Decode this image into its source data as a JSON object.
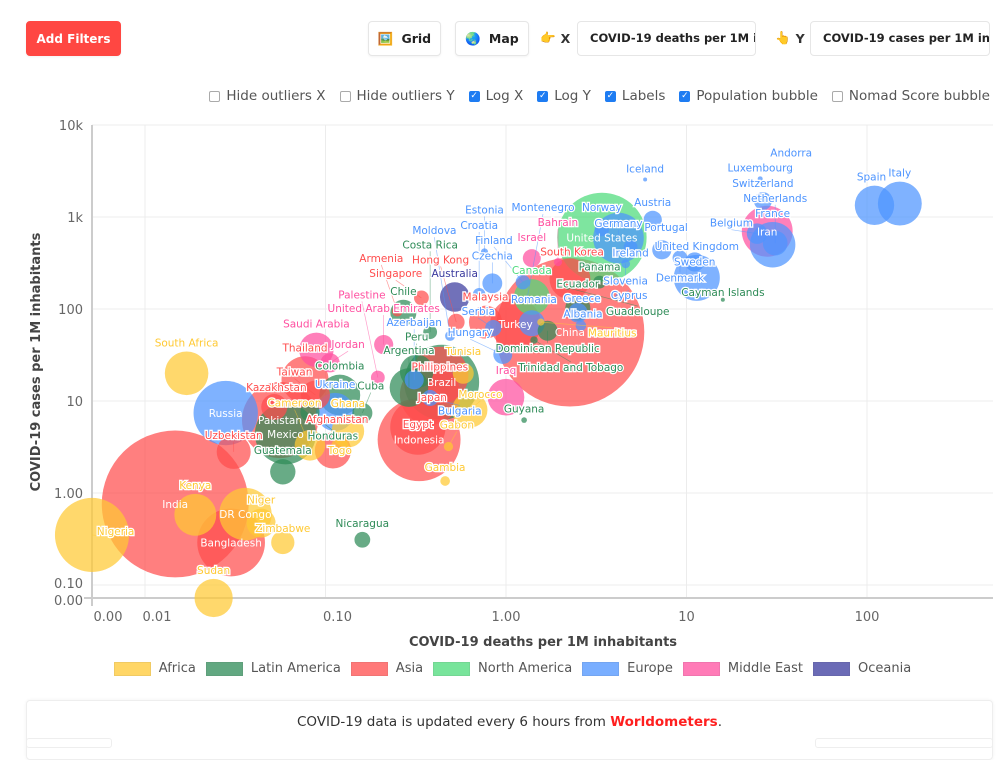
{
  "toolbar": {
    "add_filters": "Add Filters",
    "grid": {
      "label": "Grid",
      "icon": "framed-picture-icon"
    },
    "map": {
      "label": "Map",
      "icon": "globe-icon"
    },
    "x_axis": {
      "icon": "pointing-right-icon",
      "tag": "X",
      "value": "COVID-19 deaths per 1M inhabitants"
    },
    "y_axis": {
      "icon": "pointing-up-icon",
      "tag": "Y",
      "value": "COVID-19 cases per 1M inhabitants"
    }
  },
  "options": [
    {
      "label": "Hide outliers X",
      "checked": false
    },
    {
      "label": "Hide outliers Y",
      "checked": false
    },
    {
      "label": "Log X",
      "checked": true
    },
    {
      "label": "Log Y",
      "checked": true
    },
    {
      "label": "Labels",
      "checked": true
    },
    {
      "label": "Population bubble",
      "checked": true
    },
    {
      "label": "Nomad Score bubble",
      "checked": false
    }
  ],
  "chart_data": {
    "type": "bubble",
    "xlabel": "COVID-19 deaths per 1M inhabitants",
    "ylabel": "COVID-19 cases per 1M inhabitants",
    "x_scale": "log",
    "y_scale": "log",
    "x_ticks": [
      "0.00",
      "0.01",
      "0.10",
      "1.00",
      "10",
      "100"
    ],
    "y_ticks": [
      "10k",
      "1k",
      "100",
      "10",
      "1.00",
      "0.10",
      "0.00"
    ],
    "grid": true,
    "legend_position": "bottom",
    "bubble_size": "population (millions)",
    "regions": [
      {
        "name": "Africa",
        "color": "#FFC933"
      },
      {
        "name": "Latin America",
        "color": "#2E8B57"
      },
      {
        "name": "Asia",
        "color": "#FF4D4D"
      },
      {
        "name": "North America",
        "color": "#4CDB7A"
      },
      {
        "name": "Europe",
        "color": "#4D94FF"
      },
      {
        "name": "Middle East",
        "color": "#FF4FA0"
      },
      {
        "name": "Oceania",
        "color": "#3A3A9E"
      }
    ],
    "points": [
      {
        "name": "Nigeria",
        "x": 0,
        "y": 0.35,
        "pop": 206,
        "region": "Africa"
      },
      {
        "name": "South Africa",
        "x": 0.017,
        "y": 20,
        "pop": 59,
        "region": "Africa"
      },
      {
        "name": "Kenya",
        "x": 0.019,
        "y": 0.58,
        "pop": 54,
        "region": "Africa"
      },
      {
        "name": "DR Congo",
        "x": 0.036,
        "y": 0.59,
        "pop": 90,
        "region": "Africa"
      },
      {
        "name": "Niger",
        "x": 0.044,
        "y": 0.47,
        "pop": 24,
        "region": "Africa"
      },
      {
        "name": "Zimbabwe",
        "x": 0.058,
        "y": 0.29,
        "pop": 15,
        "region": "Africa"
      },
      {
        "name": "Sudan",
        "x": 0.024,
        "y": 0,
        "pop": 44,
        "region": "Africa"
      },
      {
        "name": "Ghana",
        "x": 0.133,
        "y": 4.7,
        "pop": 31,
        "region": "Africa"
      },
      {
        "name": "Cameroon",
        "x": 0.082,
        "y": 3.3,
        "pop": 27,
        "region": "Africa"
      },
      {
        "name": "Togo",
        "x": 0.12,
        "y": 3.2,
        "pop": 8,
        "region": "Africa"
      },
      {
        "name": "Gabon",
        "x": 0.48,
        "y": 3.2,
        "pop": 2.2,
        "region": "Africa"
      },
      {
        "name": "Gambia",
        "x": 0.46,
        "y": 1.35,
        "pop": 2.4,
        "region": "Africa"
      },
      {
        "name": "Tunisia",
        "x": 0.58,
        "y": 20,
        "pop": 12,
        "region": "Africa"
      },
      {
        "name": "Morocco",
        "x": 0.63,
        "y": 8,
        "pop": 37,
        "region": "Africa"
      },
      {
        "name": "Mauritius",
        "x": 1.56,
        "y": 72,
        "pop": 1.3,
        "region": "Africa"
      },
      {
        "name": "India",
        "x": 0.0147,
        "y": 0.76,
        "pop": 1380,
        "region": "Asia"
      },
      {
        "name": "China",
        "x": 2.26,
        "y": 56,
        "pop": 1440,
        "region": "Asia"
      },
      {
        "name": "Indonesia",
        "x": 0.33,
        "y": 3.8,
        "pop": 273,
        "region": "Asia"
      },
      {
        "name": "Egypt",
        "x": 0.325,
        "y": 5.2,
        "pop": 102,
        "region": "Asia"
      },
      {
        "name": "Pakistan",
        "x": 0.056,
        "y": 6.2,
        "pop": 220,
        "region": "Asia"
      },
      {
        "name": "Bangladesh",
        "x": 0.03,
        "y": 0.29,
        "pop": 165,
        "region": "Asia"
      },
      {
        "name": "Japan",
        "x": 0.38,
        "y": 11.7,
        "pop": 126,
        "region": "Asia"
      },
      {
        "name": "Philippines",
        "x": 0.43,
        "y": 19,
        "pop": 110,
        "region": "Asia"
      },
      {
        "name": "Turkey",
        "x": 1.13,
        "y": 69,
        "pop": 84,
        "region": "Asia"
      },
      {
        "name": "South Korea",
        "x": 2.26,
        "y": 213,
        "pop": 51,
        "region": "Asia"
      },
      {
        "name": "Malaysia",
        "x": 0.77,
        "y": 72,
        "pop": 32,
        "region": "Asia"
      },
      {
        "name": "Singapore",
        "x": 0.34,
        "y": 132,
        "pop": 5.8,
        "region": "Asia"
      },
      {
        "name": "Hong Kong",
        "x": 0.53,
        "y": 72,
        "pop": 7.5,
        "region": "Asia"
      },
      {
        "name": "Thailand",
        "x": 0.077,
        "y": 17,
        "pop": 70,
        "region": "Asia"
      },
      {
        "name": "Taiwan",
        "x": 0.088,
        "y": 11.6,
        "pop": 24,
        "region": "Asia"
      },
      {
        "name": "Kazakhstan",
        "x": 0.052,
        "y": 8.6,
        "pop": 19,
        "region": "Asia"
      },
      {
        "name": "Uzbekistan",
        "x": 0.031,
        "y": 2.8,
        "pop": 34,
        "region": "Asia"
      },
      {
        "name": "Afghanistan",
        "x": 0.11,
        "y": 2.9,
        "pop": 39,
        "region": "Asia"
      },
      {
        "name": "Armenia",
        "x": 0.25,
        "y": 95,
        "pop": 3,
        "region": "Asia"
      },
      {
        "name": "Brazil",
        "x": 0.44,
        "y": 16,
        "pop": 212,
        "region": "Latin America"
      },
      {
        "name": "Mexico",
        "x": 0.06,
        "y": 4.4,
        "pop": 129,
        "region": "Latin America"
      },
      {
        "name": "Peru",
        "x": 0.32,
        "y": 21,
        "pop": 33,
        "region": "Latin America"
      },
      {
        "name": "Colombia",
        "x": 0.12,
        "y": 11.6,
        "pop": 51,
        "region": "Latin America"
      },
      {
        "name": "Argentina",
        "x": 0.29,
        "y": 14,
        "pop": 45,
        "region": "Latin America"
      },
      {
        "name": "Cuba",
        "x": 0.16,
        "y": 7.4,
        "pop": 11,
        "region": "Latin America"
      },
      {
        "name": "Honduras",
        "x": 0.082,
        "y": 7.6,
        "pop": 10,
        "region": "Latin America"
      },
      {
        "name": "Guatemala",
        "x": 0.058,
        "y": 1.7,
        "pop": 18,
        "region": "Latin America"
      },
      {
        "name": "Nicaragua",
        "x": 0.16,
        "y": 0.31,
        "pop": 6.6,
        "region": "Latin America"
      },
      {
        "name": "Guyana",
        "x": 1.26,
        "y": 6.2,
        "pop": 0.8,
        "region": "Latin America"
      },
      {
        "name": "Chile",
        "x": 0.27,
        "y": 91,
        "pop": 19,
        "region": "Latin America"
      },
      {
        "name": "Costa Rica",
        "x": 0.38,
        "y": 56,
        "pop": 5,
        "region": "Latin America"
      },
      {
        "name": "Panama",
        "x": 3.3,
        "y": 196,
        "pop": 4.3,
        "region": "Latin America"
      },
      {
        "name": "Ecuador",
        "x": 2.5,
        "y": 102,
        "pop": 17.6,
        "region": "Latin America"
      },
      {
        "name": "Dominican Republic",
        "x": 1.7,
        "y": 58,
        "pop": 10.8,
        "region": "Latin America"
      },
      {
        "name": "Trinidad and Tobago",
        "x": 1.43,
        "y": 46,
        "pop": 1.4,
        "region": "Latin America"
      },
      {
        "name": "Guadeloupe",
        "x": 2.2,
        "y": 170,
        "pop": 0.4,
        "region": "Latin America"
      },
      {
        "name": "Cayman Islands",
        "x": 15.9,
        "y": 126,
        "pop": 0.065,
        "region": "Latin America"
      },
      {
        "name": "Israel",
        "x": 1.39,
        "y": 357,
        "pop": 8.7,
        "region": "Middle East"
      },
      {
        "name": "Iran",
        "x": 28,
        "y": 700,
        "pop": 84,
        "region": "Middle East"
      },
      {
        "name": "Saudi Arabia",
        "x": 0.089,
        "y": 36,
        "pop": 35,
        "region": "Middle East"
      },
      {
        "name": "Jordan",
        "x": 0.106,
        "y": 26,
        "pop": 10,
        "region": "Middle East"
      },
      {
        "name": "United Arab Emirates",
        "x": 0.21,
        "y": 41,
        "pop": 9.9,
        "region": "Middle East"
      },
      {
        "name": "Palestine",
        "x": 0.195,
        "y": 18,
        "pop": 5,
        "region": "Middle East"
      },
      {
        "name": "Iraq",
        "x": 1.0,
        "y": 11,
        "pop": 40,
        "region": "Middle East"
      },
      {
        "name": "Bahrain",
        "x": 1.94,
        "y": 323,
        "pop": 1.7,
        "region": "Middle East"
      },
      {
        "name": "United States",
        "x": 3.4,
        "y": 600,
        "pop": 331,
        "region": "North America"
      },
      {
        "name": "Canada",
        "x": 1.39,
        "y": 135,
        "pop": 38,
        "region": "North America"
      },
      {
        "name": "Russia",
        "x": 0.028,
        "y": 7.4,
        "pop": 146,
        "region": "Europe"
      },
      {
        "name": "Germany",
        "x": 4.2,
        "y": 590,
        "pop": 83,
        "region": "Europe"
      },
      {
        "name": "Spain",
        "x": 110,
        "y": 1340,
        "pop": 47,
        "region": "Europe"
      },
      {
        "name": "Italy",
        "x": 152,
        "y": 1400,
        "pop": 60,
        "region": "Europe"
      },
      {
        "name": "France",
        "x": 30,
        "y": 500,
        "pop": 65,
        "region": "Europe"
      },
      {
        "name": "United Kingdom",
        "x": 11.4,
        "y": 218,
        "pop": 67,
        "region": "Europe"
      },
      {
        "name": "Switzerland",
        "x": 26.5,
        "y": 1490,
        "pop": 8.6,
        "region": "Europe"
      },
      {
        "name": "Luxembourg",
        "x": 25.6,
        "y": 2600,
        "pop": 0.63,
        "region": "Europe"
      },
      {
        "name": "Andorra",
        "x": 38,
        "y": 3300,
        "pop": 0.08,
        "region": "Europe"
      },
      {
        "name": "Iceland",
        "x": 5.9,
        "y": 2560,
        "pop": 0.34,
        "region": "Europe"
      },
      {
        "name": "Belgium",
        "x": 24.6,
        "y": 660,
        "pop": 11.5,
        "region": "Europe"
      },
      {
        "name": "Netherlands",
        "x": 31,
        "y": 520,
        "pop": 17,
        "region": "Europe"
      },
      {
        "name": "Norway",
        "x": 3.4,
        "y": 740,
        "pop": 5.4,
        "region": "Europe"
      },
      {
        "name": "Austria",
        "x": 6.5,
        "y": 930,
        "pop": 9,
        "region": "Europe"
      },
      {
        "name": "Ireland",
        "x": 4.9,
        "y": 470,
        "pop": 5,
        "region": "Europe"
      },
      {
        "name": "Portugal",
        "x": 7.3,
        "y": 440,
        "pop": 10,
        "region": "Europe"
      },
      {
        "name": "Denmark",
        "x": 9.2,
        "y": 360,
        "pop": 5.8,
        "region": "Europe"
      },
      {
        "name": "Sweden",
        "x": 11.1,
        "y": 324,
        "pop": 10,
        "region": "Europe"
      },
      {
        "name": "Slovenia",
        "x": 4.6,
        "y": 310,
        "pop": 2,
        "region": "Europe"
      },
      {
        "name": "Estonia",
        "x": 0.76,
        "y": 417,
        "pop": 1.3,
        "region": "Europe"
      },
      {
        "name": "Czechia",
        "x": 0.84,
        "y": 190,
        "pop": 10.7,
        "region": "Europe"
      },
      {
        "name": "Finland",
        "x": 1.24,
        "y": 196,
        "pop": 5.5,
        "region": "Europe"
      },
      {
        "name": "Croatia",
        "x": 0.71,
        "y": 145,
        "pop": 4,
        "region": "Europe"
      },
      {
        "name": "Montenegro",
        "x": 1.31,
        "y": 132,
        "pop": 0.6,
        "region": "Europe"
      },
      {
        "name": "Romania",
        "x": 1.39,
        "y": 70,
        "pop": 19,
        "region": "Europe"
      },
      {
        "name": "Serbia",
        "x": 0.85,
        "y": 62,
        "pop": 7,
        "region": "Europe"
      },
      {
        "name": "Hungary",
        "x": 0.96,
        "y": 32,
        "pop": 9.7,
        "region": "Europe"
      },
      {
        "name": "Greece",
        "x": 2.5,
        "y": 91,
        "pop": 10.4,
        "region": "Europe"
      },
      {
        "name": "Albania",
        "x": 2.6,
        "y": 66,
        "pop": 2.9,
        "region": "Europe"
      },
      {
        "name": "Cyprus",
        "x": 4.2,
        "y": 135,
        "pop": 1.2,
        "region": "Europe"
      },
      {
        "name": "Moldova",
        "x": 0.49,
        "y": 51,
        "pop": 2.6,
        "region": "Europe"
      },
      {
        "name": "Ukraine",
        "x": 0.113,
        "y": 7.6,
        "pop": 44,
        "region": "Europe"
      },
      {
        "name": "Azerbaijan",
        "x": 0.31,
        "y": 17,
        "pop": 10,
        "region": "Europe"
      },
      {
        "name": "Bulgaria",
        "x": 0.38,
        "y": 10.8,
        "pop": 7,
        "region": "Europe"
      },
      {
        "name": "Australia",
        "x": 0.52,
        "y": 135,
        "pop": 25,
        "region": "Oceania"
      }
    ]
  },
  "footer": {
    "text": "COVID-19 data is updated every 6 hours from ",
    "link": "Worldometers",
    "end": "."
  }
}
